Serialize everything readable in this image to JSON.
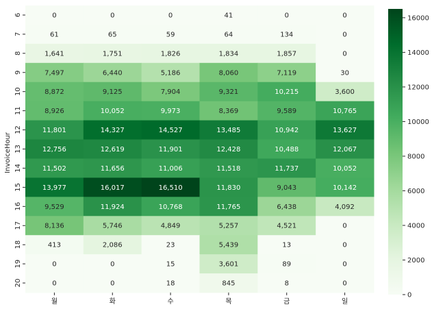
{
  "chart_data": {
    "type": "heatmap",
    "title": "",
    "xlabel": "",
    "ylabel": "InvoiceHour",
    "x_categories": [
      "월",
      "화",
      "수",
      "목",
      "금",
      "일"
    ],
    "y_categories": [
      "6",
      "7",
      "8",
      "9",
      "10",
      "11",
      "12",
      "13",
      "14",
      "15",
      "16",
      "17",
      "18",
      "19",
      "20"
    ],
    "values": [
      [
        0,
        0,
        0,
        41,
        0,
        0
      ],
      [
        61,
        65,
        59,
        64,
        134,
        0
      ],
      [
        1641,
        1751,
        1826,
        1834,
        1857,
        0
      ],
      [
        7497,
        6440,
        5186,
        8060,
        7119,
        30
      ],
      [
        8872,
        9125,
        7904,
        9321,
        10215,
        3600
      ],
      [
        8926,
        10052,
        9973,
        8369,
        9589,
        10765
      ],
      [
        11801,
        14327,
        14527,
        13485,
        10942,
        13627
      ],
      [
        12756,
        12619,
        11901,
        12428,
        10488,
        12067
      ],
      [
        11502,
        11656,
        11006,
        11518,
        11737,
        10052
      ],
      [
        13977,
        16017,
        16510,
        11830,
        9043,
        10142
      ],
      [
        9529,
        11924,
        10768,
        11765,
        6438,
        4092
      ],
      [
        8136,
        5746,
        4849,
        5257,
        4521,
        0
      ],
      [
        413,
        2086,
        23,
        5439,
        13,
        0
      ],
      [
        0,
        0,
        15,
        3601,
        89,
        0
      ],
      [
        0,
        0,
        18,
        845,
        8,
        0
      ]
    ],
    "colorbar": {
      "min": 0,
      "max": 16510,
      "ticks": [
        0,
        2000,
        4000,
        6000,
        8000,
        10000,
        12000,
        14000,
        16000
      ],
      "colors": [
        "#f7fcf5",
        "#e5f5e0",
        "#c7e9c0",
        "#a1d99b",
        "#74c476",
        "#41ab5d",
        "#238b45",
        "#006d2c",
        "#00441b"
      ]
    },
    "dark_text_color": "#262626",
    "light_text_color": "#ffffff"
  }
}
